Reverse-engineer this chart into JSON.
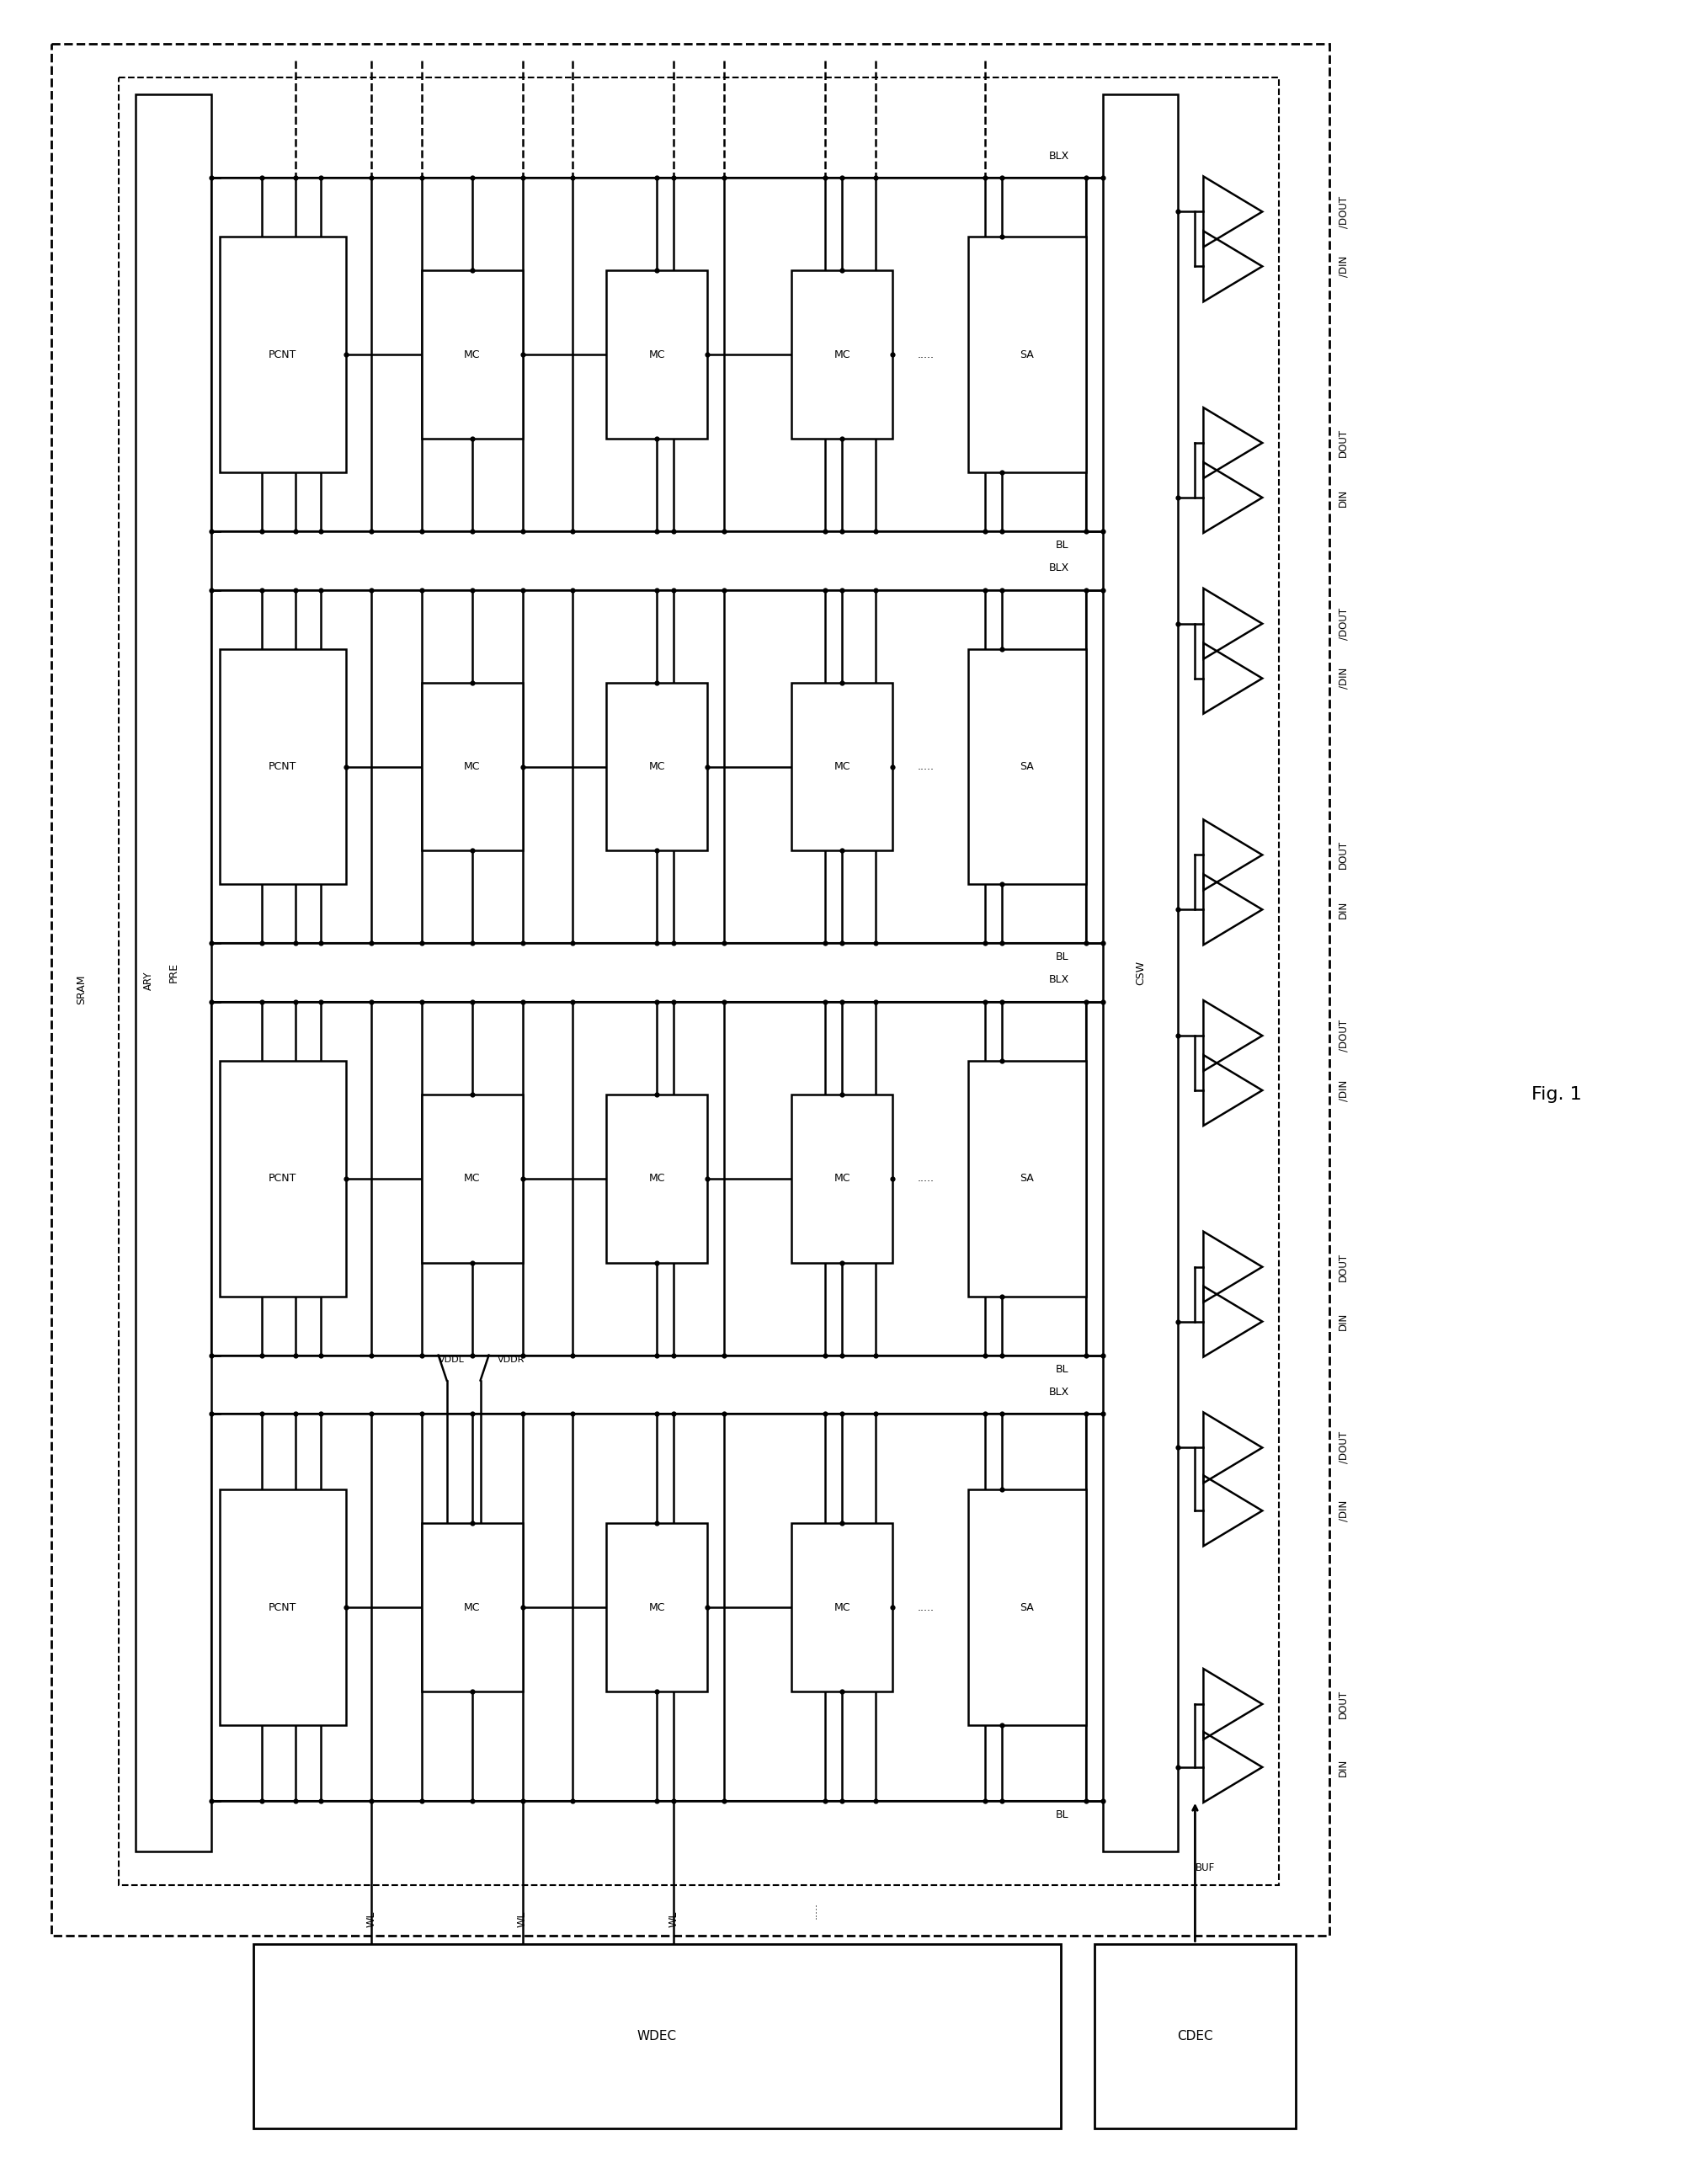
{
  "fig_width": 20.18,
  "fig_height": 25.94,
  "bg": "#ffffff",
  "lc": "#000000",
  "lw": 1.8,
  "dot_r": 4.5,
  "title": "Fig. 1",
  "labels": {
    "sram": "SRAM",
    "ary": "ARY",
    "pre": "PRE",
    "csw": "CSW",
    "wdec": "WDEC",
    "cdec": "CDEC",
    "buf": "BUF",
    "pcnt": "PCNT",
    "mc": "MC",
    "sa": "SA",
    "blx": "BLX",
    "bl": "BL",
    "vddl": "VDDL",
    "vddr": "VDDR",
    "wl": "WL"
  },
  "tri_labels_top": [
    "/DOUT",
    "/DIN"
  ],
  "tri_labels_bot": [
    "DOUT",
    "DIN"
  ],
  "wl_dots": ".....",
  "mc_dots": ".....",
  "row_dots": "....."
}
